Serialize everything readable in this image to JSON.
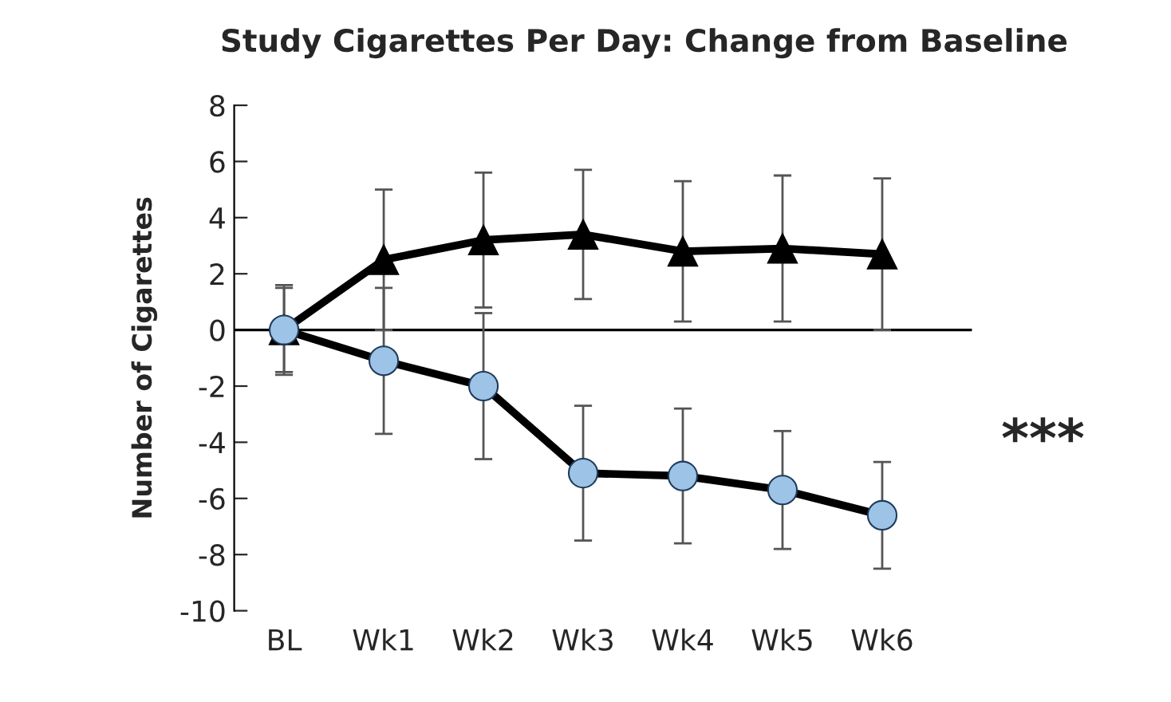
{
  "chart_data": {
    "type": "line",
    "title": "Study Cigarettes Per Day: Change from Baseline",
    "ylabel": "Number of Cigarettes",
    "categories": [
      "BL",
      "Wk1",
      "Wk2",
      "Wk3",
      "Wk4",
      "Wk5",
      "Wk6"
    ],
    "series": [
      {
        "color": "#000000",
        "marker": "triangle",
        "values": [
          0,
          2.5,
          3.2,
          3.4,
          2.8,
          2.9,
          2.7
        ],
        "errors": [
          1.6,
          2.5,
          2.4,
          2.3,
          2.5,
          2.6,
          2.7
        ]
      },
      {
        "color": "#9dc3e6",
        "marker": "circle",
        "values": [
          0,
          -1.1,
          -2.0,
          -5.1,
          -5.2,
          -5.7,
          -6.6
        ],
        "errors": [
          1.5,
          2.6,
          2.6,
          2.4,
          2.4,
          2.1,
          1.9
        ]
      }
    ],
    "ylim": [
      -10,
      8
    ],
    "yticks": [
      -10,
      -8,
      -6,
      -4,
      -2,
      0,
      2,
      4,
      6,
      8
    ],
    "ref_lines": [
      {
        "axis": "y",
        "value": 0,
        "color": "#000000"
      }
    ],
    "annotations": [
      "***"
    ],
    "grid": false,
    "legend": false,
    "line_style": "solid"
  }
}
